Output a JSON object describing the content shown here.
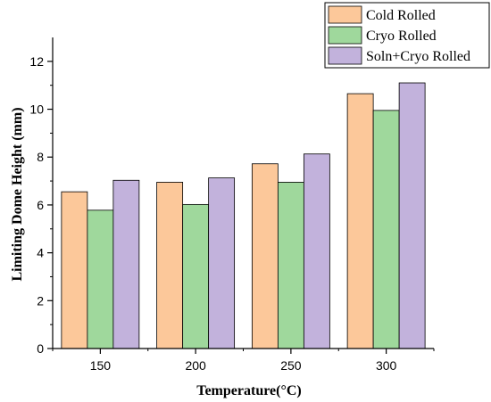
{
  "chart_data": {
    "type": "bar",
    "title": "",
    "xlabel": "Temperature(°C)",
    "ylabel": "Limiting Dome Height (mm)",
    "categories": [
      "150",
      "200",
      "250",
      "300"
    ],
    "ylim": [
      0,
      13
    ],
    "yticks": [
      0,
      2,
      4,
      6,
      8,
      10,
      12
    ],
    "grid": false,
    "legend_position": "top-right",
    "series": [
      {
        "name": "Cold Rolled",
        "color": "#FCC89A",
        "values": [
          6.55,
          6.95,
          7.72,
          10.65
        ]
      },
      {
        "name": "Cryo Rolled",
        "color": "#9FD89C",
        "values": [
          5.78,
          6.02,
          6.95,
          9.95
        ]
      },
      {
        "name": "Soln+Cryo Rolled",
        "color": "#C2B2DC",
        "values": [
          7.03,
          7.13,
          8.13,
          11.1
        ]
      }
    ]
  }
}
